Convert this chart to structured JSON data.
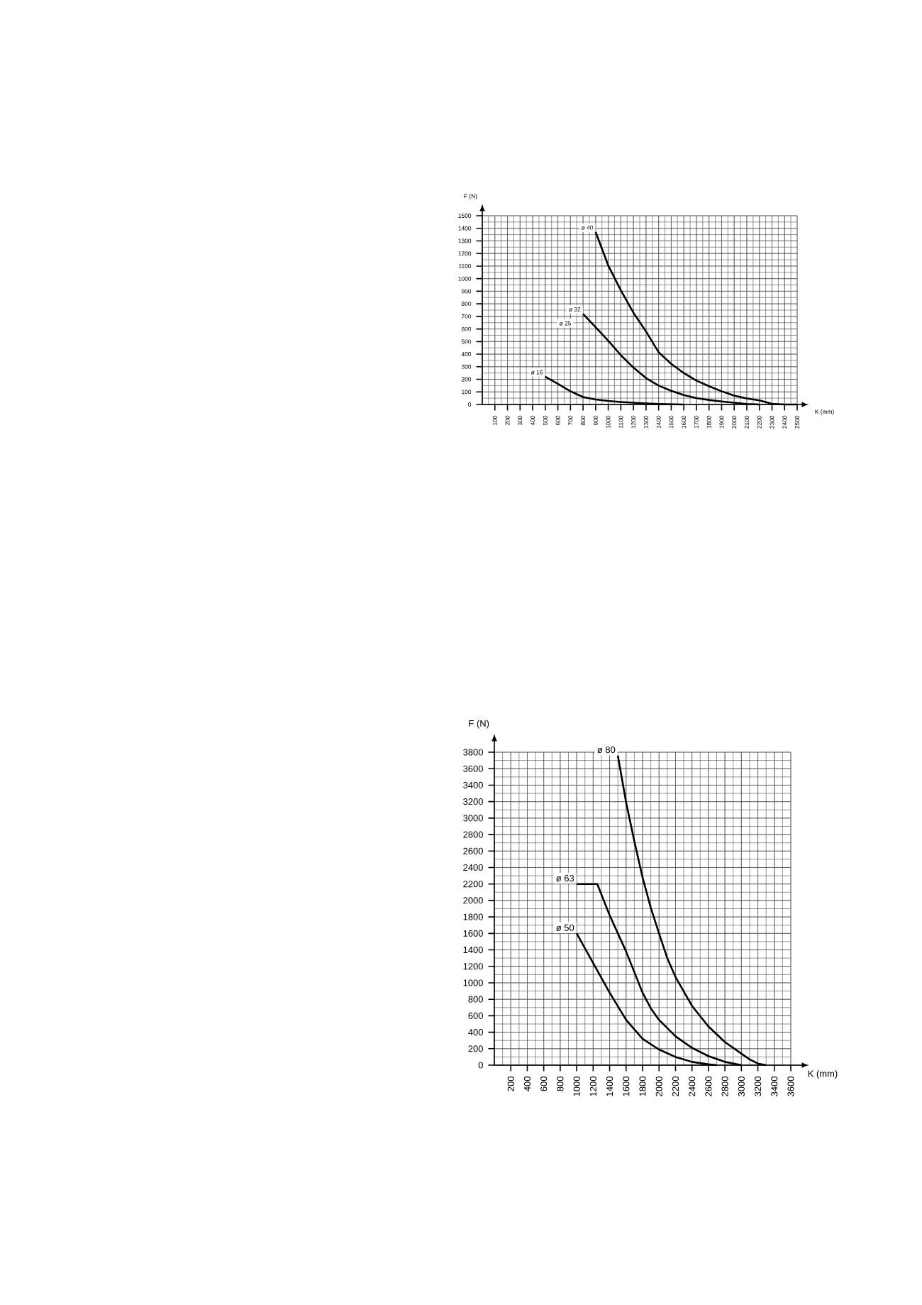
{
  "chart_data": [
    {
      "type": "line",
      "xlabel": "K (mm)",
      "ylabel": "F (N)",
      "xlim": [
        0,
        2500
      ],
      "ylim": [
        0,
        1500
      ],
      "xticks": [
        100,
        200,
        300,
        400,
        500,
        600,
        700,
        800,
        900,
        1000,
        1100,
        1200,
        1300,
        1400,
        1500,
        1600,
        1700,
        1800,
        1900,
        2000,
        2100,
        2200,
        2300,
        2400,
        2500
      ],
      "yticks": [
        0,
        100,
        200,
        300,
        400,
        500,
        600,
        700,
        800,
        900,
        1000,
        1100,
        1200,
        1300,
        1400,
        1500
      ],
      "grid": true,
      "annotations": [
        "ø 25"
      ],
      "series": [
        {
          "name": "ø 40",
          "color": "#000000",
          "x": [
            900,
            1000,
            1100,
            1200,
            1300,
            1400,
            1500,
            1600,
            1700,
            1800,
            1900,
            2000,
            2100,
            2200,
            2300,
            2400,
            2500
          ],
          "values": [
            1370,
            1105,
            907,
            729,
            580,
            415,
            323,
            250,
            190,
            145,
            105,
            71,
            48,
            32,
            6,
            0,
            0
          ]
        },
        {
          "name": "ø 32",
          "color": "#000000",
          "x": [
            800,
            900,
            1000,
            1100,
            1200,
            1300,
            1400,
            1500,
            1600,
            1700,
            1800,
            1900,
            2000,
            2100,
            2200
          ],
          "values": [
            720,
            614,
            507,
            392,
            293,
            210,
            150,
            109,
            75,
            51,
            36,
            24,
            14,
            4,
            0
          ]
        },
        {
          "name": "ø 16",
          "color": "#000000",
          "x": [
            500,
            600,
            700,
            800,
            900,
            1000,
            1100,
            1200,
            1300,
            1400,
            1600
          ],
          "values": [
            220,
            164,
            105,
            59,
            40,
            28,
            20,
            14,
            8,
            4,
            0
          ]
        }
      ]
    },
    {
      "type": "line",
      "xlabel": "K (mm)",
      "ylabel": "F (N)",
      "xlim": [
        0,
        3600
      ],
      "ylim": [
        0,
        3800
      ],
      "xticks": [
        200,
        400,
        600,
        800,
        1000,
        1200,
        1400,
        1600,
        1800,
        2000,
        2200,
        2400,
        2600,
        2800,
        3000,
        3200,
        3400,
        3600
      ],
      "yticks": [
        0,
        200,
        400,
        600,
        800,
        1000,
        1200,
        1400,
        1600,
        1800,
        2000,
        2200,
        2400,
        2600,
        2800,
        3000,
        3200,
        3400,
        3600,
        3800
      ],
      "grid": true,
      "series": [
        {
          "name": "ø 80",
          "color": "#000000",
          "x": [
            1500,
            1600,
            1700,
            1800,
            1900,
            2000,
            2100,
            2200,
            2400,
            2600,
            2800,
            3000,
            3100,
            3200,
            3300
          ],
          "values": [
            3760,
            3190,
            2720,
            2280,
            1910,
            1600,
            1300,
            1070,
            720,
            470,
            280,
            140,
            70,
            20,
            0
          ]
        },
        {
          "name": "ø 63",
          "color": "#000000",
          "x": [
            1000,
            1250,
            1400,
            1600,
            1800,
            1900,
            2000,
            2200,
            2400,
            2600,
            2800,
            3000
          ],
          "values": [
            2200,
            2200,
            1820,
            1380,
            880,
            690,
            550,
            350,
            210,
            110,
            40,
            0
          ]
        },
        {
          "name": "ø 50",
          "color": "#000000",
          "x": [
            1000,
            1200,
            1400,
            1600,
            1800,
            2000,
            2200,
            2400,
            2600,
            2700
          ],
          "values": [
            1600,
            1240,
            880,
            550,
            320,
            190,
            100,
            40,
            10,
            0
          ]
        }
      ]
    }
  ]
}
